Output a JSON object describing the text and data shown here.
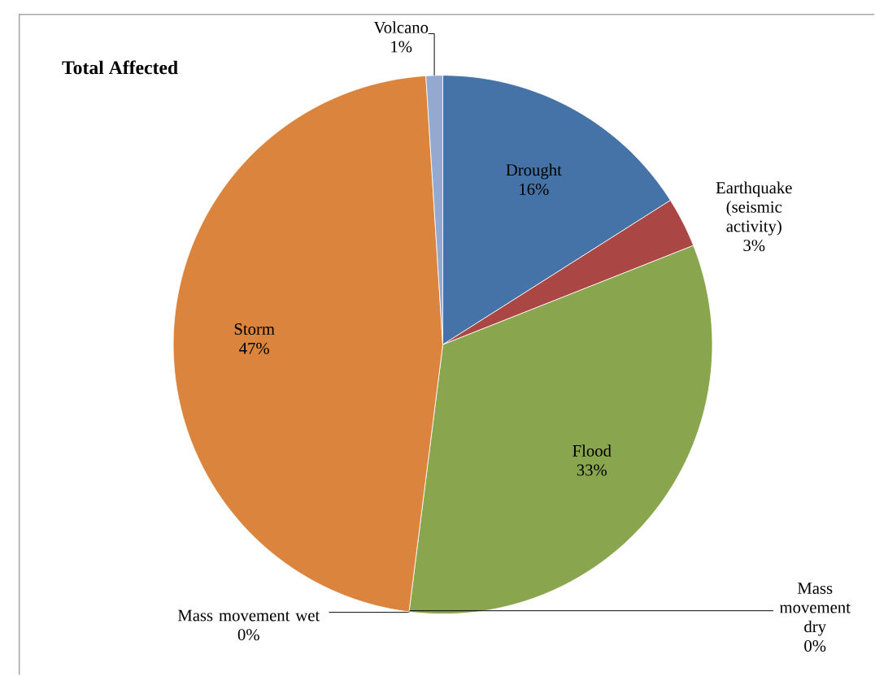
{
  "chart_data": {
    "type": "pie",
    "title": "Total Affected",
    "categories": [
      "Drought",
      "Earthquake (seismic activity)",
      "Flood",
      "Mass movement dry",
      "Mass movement wet",
      "Storm",
      "Volcano"
    ],
    "values": [
      16,
      3,
      33,
      0,
      0,
      47,
      1
    ],
    "value_labels": [
      "16%",
      "3%",
      "33%",
      "0%",
      "0%",
      "47%",
      "1%"
    ],
    "colors": [
      "#4572a7",
      "#aa4643",
      "#89a54e",
      "#71588f",
      "#4198af",
      "#db843d",
      "#93a9cf"
    ]
  }
}
